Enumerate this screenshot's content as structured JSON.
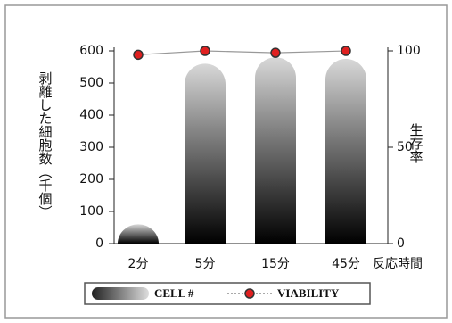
{
  "chart_data": {
    "type": "bar",
    "categories": [
      "2分",
      "5分",
      "15分",
      "45分"
    ],
    "series": [
      {
        "name": "CELL #",
        "type": "bar",
        "color": "#2a2a2a",
        "values": [
          60,
          560,
          580,
          575
        ]
      },
      {
        "name": "VIABILITY",
        "type": "line",
        "axis": "y2",
        "color": "#e02020",
        "values": [
          98,
          100,
          99,
          100
        ]
      }
    ],
    "ylim": [
      0,
      600
    ],
    "yticks": [
      0,
      100,
      200,
      300,
      400,
      500,
      600
    ],
    "y2lim": [
      0,
      100
    ],
    "y2ticks": [
      0,
      50,
      100
    ],
    "ylabel": "剥離した細胞数（千個）",
    "y2label": "生存率",
    "xlabel": "反応時間"
  }
}
